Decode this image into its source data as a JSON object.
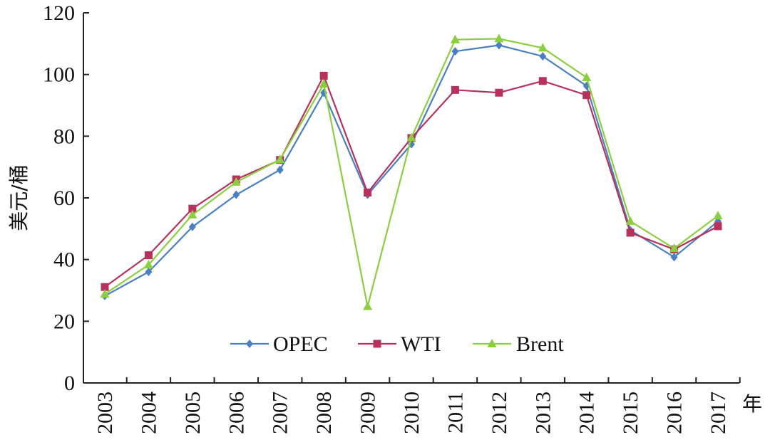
{
  "chart_data": {
    "type": "line",
    "title": "",
    "ylabel": "美元/桶",
    "xlabel": "年",
    "ylim": [
      0,
      120
    ],
    "yticks": [
      "0",
      "20",
      "40",
      "60",
      "80",
      "100",
      "120"
    ],
    "categories": [
      "2003",
      "2004",
      "2005",
      "2006",
      "2007",
      "2008",
      "2009",
      "2010",
      "2011",
      "2012",
      "2013",
      "2014",
      "2015",
      "2016",
      "2017"
    ],
    "legend_position": "bottom-center-inside",
    "grid": false,
    "series": [
      {
        "name": "OPEC",
        "color": "#4a7fc1",
        "marker": "diamond",
        "values": [
          28.2,
          36.0,
          50.6,
          61.0,
          69.1,
          94.1,
          61.0,
          77.4,
          107.5,
          109.5,
          105.9,
          96.3,
          49.5,
          40.8,
          52.4
        ]
      },
      {
        "name": "WTI",
        "color": "#b8305c",
        "marker": "square",
        "values": [
          31.1,
          41.4,
          56.5,
          66.0,
          72.3,
          99.6,
          61.7,
          79.4,
          95.0,
          94.1,
          97.9,
          93.3,
          48.7,
          43.3,
          50.8
        ]
      },
      {
        "name": "Brent",
        "color": "#8ccf3e",
        "marker": "triangle",
        "values": [
          28.8,
          38.3,
          54.5,
          65.1,
          72.4,
          96.9,
          24.8,
          79.5,
          111.3,
          111.6,
          108.6,
          99.0,
          52.4,
          43.6,
          54.2
        ]
      }
    ]
  }
}
